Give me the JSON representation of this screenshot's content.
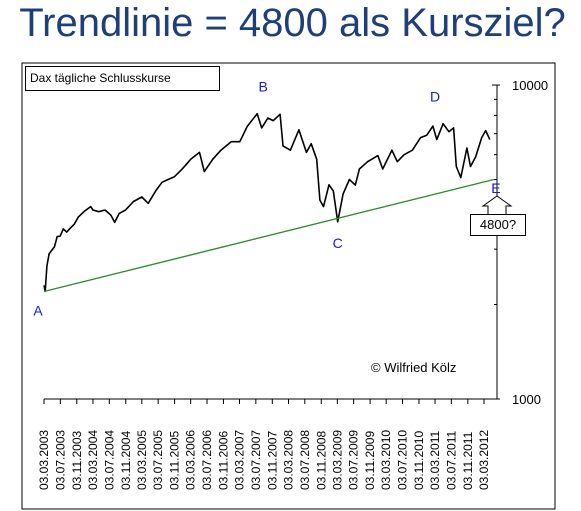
{
  "title": "Trendlinie = 4800 als Kursziel?",
  "chart_data": {
    "type": "line",
    "title": "Dax tägliche Schlusskurse",
    "scale": "log",
    "ylim": [
      1000,
      10000
    ],
    "yticks": [
      {
        "value": 1000,
        "label": "1000"
      },
      {
        "value": 10000,
        "label": "10000"
      }
    ],
    "xlim": [
      "2003-03-03",
      "2012-05-15"
    ],
    "xticks": [
      "03.03.2003",
      "03.07.2003",
      "03.11.2003",
      "03.03.2004",
      "03.07.2004",
      "03.11.2004",
      "03.03.2005",
      "03.07.2005",
      "03.11.2005",
      "03.03.2006",
      "03.07.2006",
      "03.11.2006",
      "03.03.2007",
      "03.07.2007",
      "03.11.2007",
      "03.03.2008",
      "03.07.2008",
      "03.11.2008",
      "03.03.2009",
      "03.07.2009",
      "03.11.2009",
      "03.03.2010",
      "03.07.2010",
      "03.11.2010",
      "03.03.2011",
      "03.07.2011",
      "03.11.2011",
      "03.03.2012"
    ],
    "grid": false,
    "series": [
      {
        "color": "#000000",
        "points": [
          [
            "2003-03-03",
            2300
          ],
          [
            "2003-03-12",
            2203
          ],
          [
            "2003-03-25",
            2650
          ],
          [
            "2003-04-10",
            2900
          ],
          [
            "2003-05-01",
            2980
          ],
          [
            "2003-05-20",
            3050
          ],
          [
            "2003-06-10",
            3290
          ],
          [
            "2003-07-01",
            3300
          ],
          [
            "2003-07-25",
            3480
          ],
          [
            "2003-08-20",
            3400
          ],
          [
            "2003-09-15",
            3500
          ],
          [
            "2003-10-15",
            3600
          ],
          [
            "2003-11-15",
            3800
          ],
          [
            "2003-12-31",
            3965
          ],
          [
            "2004-02-15",
            4100
          ],
          [
            "2004-03-03",
            4000
          ],
          [
            "2004-04-15",
            3950
          ],
          [
            "2004-06-01",
            4000
          ],
          [
            "2004-07-15",
            3850
          ],
          [
            "2004-08-12",
            3650
          ],
          [
            "2004-09-15",
            3900
          ],
          [
            "2004-11-01",
            4000
          ],
          [
            "2004-12-31",
            4256
          ],
          [
            "2005-03-03",
            4400
          ],
          [
            "2005-04-20",
            4200
          ],
          [
            "2005-06-15",
            4600
          ],
          [
            "2005-08-01",
            4900
          ],
          [
            "2005-09-15",
            5000
          ],
          [
            "2005-11-01",
            5100
          ],
          [
            "2005-12-31",
            5408
          ],
          [
            "2006-03-03",
            5800
          ],
          [
            "2006-05-08",
            6100
          ],
          [
            "2006-06-13",
            5300
          ],
          [
            "2006-08-15",
            5800
          ],
          [
            "2006-10-15",
            6200
          ],
          [
            "2006-12-31",
            6597
          ],
          [
            "2007-03-05",
            6600
          ],
          [
            "2007-05-01",
            7400
          ],
          [
            "2007-07-13",
            8100
          ],
          [
            "2007-08-16",
            7300
          ],
          [
            "2007-10-01",
            7850
          ],
          [
            "2007-11-10",
            7700
          ],
          [
            "2007-12-31",
            8067
          ],
          [
            "2008-01-22",
            6400
          ],
          [
            "2008-03-17",
            6200
          ],
          [
            "2008-05-20",
            7200
          ],
          [
            "2008-07-15",
            6100
          ],
          [
            "2008-08-20",
            6500
          ],
          [
            "2008-09-30",
            5800
          ],
          [
            "2008-10-24",
            4300
          ],
          [
            "2008-11-20",
            4100
          ],
          [
            "2008-12-31",
            4810
          ],
          [
            "2009-02-01",
            4600
          ],
          [
            "2009-03-06",
            3666
          ],
          [
            "2009-04-15",
            4500
          ],
          [
            "2009-06-01",
            5000
          ],
          [
            "2009-07-15",
            4800
          ],
          [
            "2009-08-15",
            5400
          ],
          [
            "2009-10-15",
            5700
          ],
          [
            "2009-12-31",
            5957
          ],
          [
            "2010-02-05",
            5400
          ],
          [
            "2010-04-15",
            6200
          ],
          [
            "2010-05-25",
            5700
          ],
          [
            "2010-07-15",
            6000
          ],
          [
            "2010-09-15",
            6200
          ],
          [
            "2010-11-15",
            6800
          ],
          [
            "2010-12-31",
            6914
          ],
          [
            "2011-02-15",
            7400
          ],
          [
            "2011-03-16",
            6700
          ],
          [
            "2011-05-02",
            7527
          ],
          [
            "2011-06-15",
            7100
          ],
          [
            "2011-07-20",
            7300
          ],
          [
            "2011-08-09",
            5500
          ],
          [
            "2011-09-12",
            5072
          ],
          [
            "2011-10-27",
            6300
          ],
          [
            "2011-11-23",
            5500
          ],
          [
            "2011-12-31",
            5898
          ],
          [
            "2012-02-15",
            6800
          ],
          [
            "2012-03-16",
            7157
          ],
          [
            "2012-04-15",
            6700
          ]
        ]
      },
      {
        "color": "#2e8b2e",
        "points": [
          [
            "2003-03-03",
            2200
          ],
          [
            "2012-05-15",
            5000
          ]
        ]
      }
    ],
    "annotations": [
      {
        "label": "A",
        "date": "2003-03-03",
        "value": 2200
      },
      {
        "label": "B",
        "date": "2007-07-13",
        "value": 8100
      },
      {
        "label": "C",
        "date": "2009-03-06",
        "value": 3666
      },
      {
        "label": "D",
        "date": "2011-05-02",
        "value": 7527
      },
      {
        "label": "E",
        "date": "2012-05-01"
      }
    ],
    "callout": "4800?",
    "credit": "© Wilfried Kölz",
    "colors": {
      "title": "#1f3f7a",
      "annotation": "#1a1acc",
      "price": "#000000",
      "trendline": "#2e8b2e"
    }
  }
}
